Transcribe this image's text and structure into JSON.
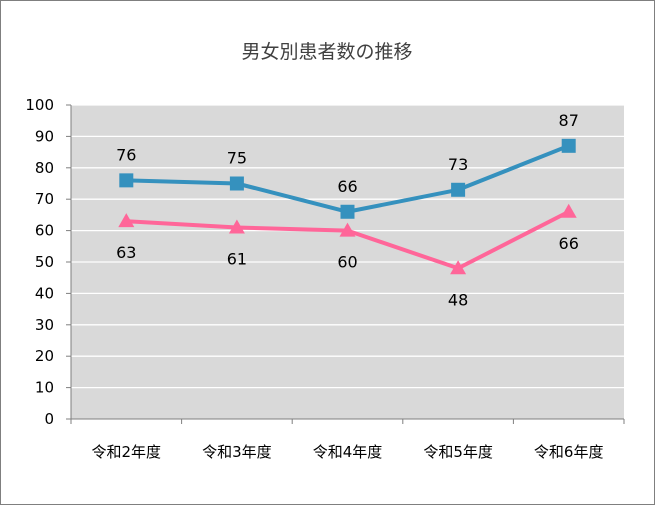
{
  "chart_data": {
    "type": "line",
    "title": "男女別患者数の推移",
    "categories": [
      "令和2年度",
      "令和3年度",
      "令和4年度",
      "令和5年度",
      "令和6年度"
    ],
    "ylim": [
      0,
      100
    ],
    "yticks": [
      "0",
      "10",
      "20",
      "30",
      "40",
      "50",
      "60",
      "70",
      "80",
      "90",
      "100"
    ],
    "grid": true,
    "legend": "none",
    "plot_background": "#d9d9d9",
    "series": [
      {
        "values": [
          76,
          75,
          66,
          73,
          87
        ],
        "color": "#3591be",
        "marker": "square",
        "label_position": "above"
      },
      {
        "values": [
          63,
          61,
          60,
          48,
          66
        ],
        "color": "#ff6699",
        "marker": "triangle",
        "label_position": "below"
      }
    ]
  }
}
